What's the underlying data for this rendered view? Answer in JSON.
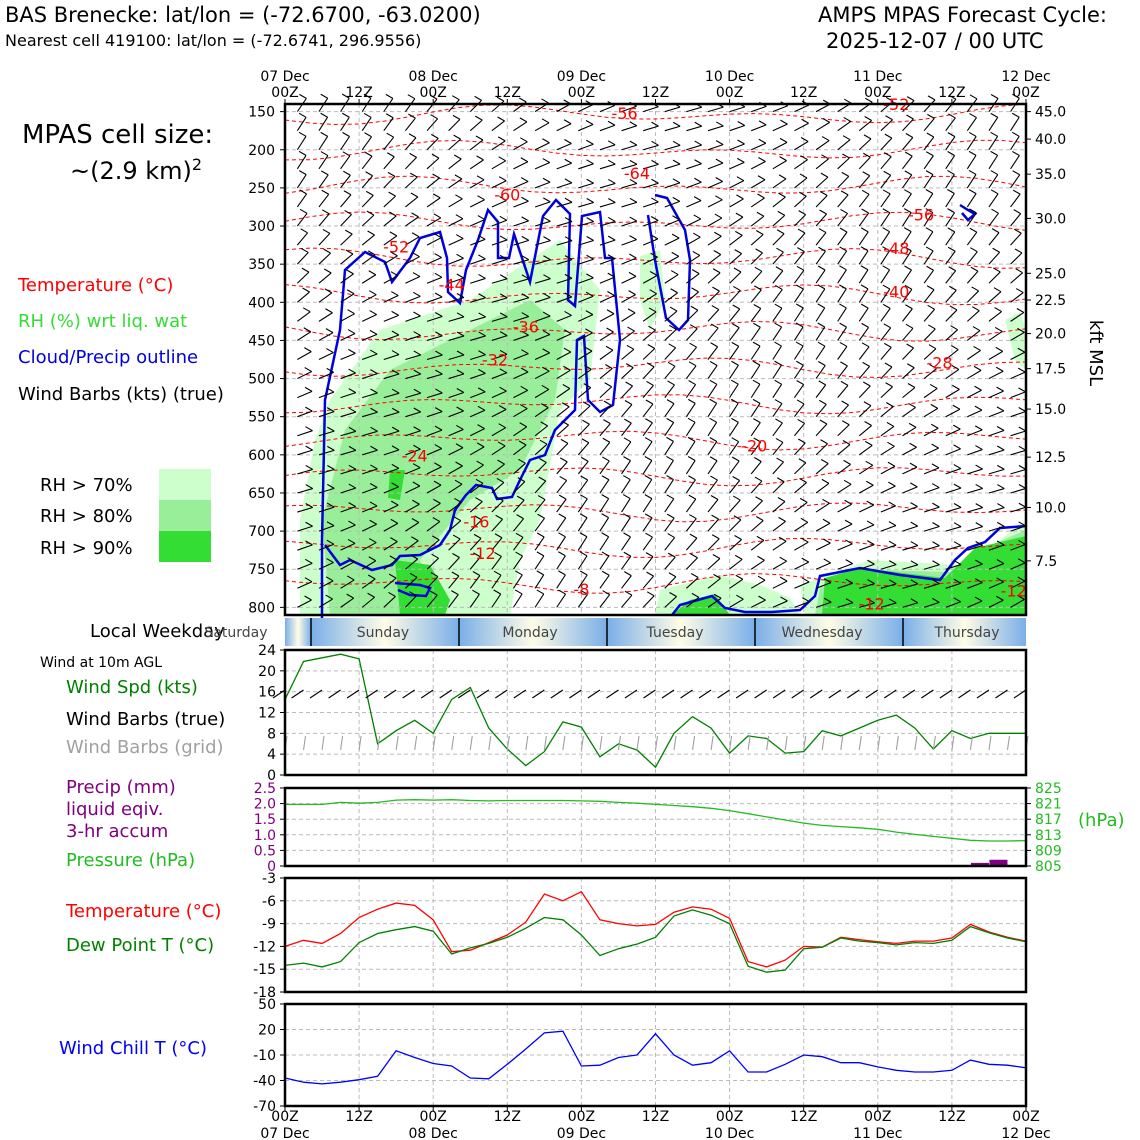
{
  "header": {
    "station_line": "BAS Brenecke: lat/lon = (-72.6700, -63.0200)",
    "cell_line": "Nearest cell 419100: lat/lon = (-72.6741, 296.9556)",
    "cycle_title": "AMPS MPAS Forecast Cycle:",
    "cycle_time": "2025-12-07 / 00 UTC"
  },
  "cell_size": {
    "label": "MPAS cell size:",
    "value": "~(2.9 km)",
    "exponent": "2"
  },
  "colors": {
    "temp": "#ff0000",
    "rh_label": "#33dd33",
    "cloud": "#0000dd",
    "green": "#008000",
    "pressure": "#22bb22",
    "precip": "#800080",
    "windchill": "#0000ff",
    "grid_barbs": "#a0a0a0",
    "rh70": "#ccffcc",
    "rh80": "#99ee99",
    "rh90": "#33dd33"
  },
  "chart_data": [
    {
      "id": "upper_air",
      "type": "heatmap",
      "title": "",
      "legend": [
        {
          "label": "Temperature (°C)",
          "color": "#ff0000"
        },
        {
          "label": "RH (%) wrt liq. wat",
          "color": "#33dd33"
        },
        {
          "label": "Cloud/Precip outline",
          "color": "#0000dd"
        },
        {
          "label": "Wind Barbs (kts) (true)",
          "color": "#000000"
        }
      ],
      "rh_legend": [
        "RH > 70%",
        "RH > 80%",
        "RH > 90%"
      ],
      "x_ticks_top": [
        {
          "h": 0,
          "top": "07 Dec",
          "bottom": "00Z"
        },
        {
          "h": 12,
          "top": "",
          "bottom": "12Z"
        },
        {
          "h": 24,
          "top": "08 Dec",
          "bottom": "00Z"
        },
        {
          "h": 36,
          "top": "",
          "bottom": "12Z"
        },
        {
          "h": 48,
          "top": "09 Dec",
          "bottom": "00Z"
        },
        {
          "h": 60,
          "top": "",
          "bottom": "12Z"
        },
        {
          "h": 72,
          "top": "10 Dec",
          "bottom": "00Z"
        },
        {
          "h": 84,
          "top": "",
          "bottom": "12Z"
        },
        {
          "h": 96,
          "top": "11 Dec",
          "bottom": "00Z"
        },
        {
          "h": 108,
          "top": "",
          "bottom": "12Z"
        },
        {
          "h": 120,
          "top": "12 Dec",
          "bottom": "00Z"
        }
      ],
      "y_left_hpa": [
        150,
        200,
        250,
        300,
        350,
        400,
        450,
        500,
        550,
        600,
        650,
        700,
        750,
        800
      ],
      "y_right_kft": [
        {
          "p": 150,
          "label": "45.0"
        },
        {
          "p": 186,
          "label": "40.0"
        },
        {
          "p": 232,
          "label": "35.0"
        },
        {
          "p": 290,
          "label": "30.0"
        },
        {
          "p": 362,
          "label": "25.0"
        },
        {
          "p": 397,
          "label": "22.5"
        },
        {
          "p": 441,
          "label": "20.0"
        },
        {
          "p": 487,
          "label": "17.5"
        },
        {
          "p": 540,
          "label": "15.0"
        },
        {
          "p": 603,
          "label": "12.5"
        },
        {
          "p": 669,
          "label": "10.0"
        },
        {
          "p": 739,
          "label": "7.5"
        }
      ],
      "ylabel_right": "kft MSL",
      "temp_contour_labels": [
        {
          "t": 55,
          "p": 153,
          "v": "-56"
        },
        {
          "t": 99,
          "p": 141,
          "v": "-52"
        },
        {
          "t": 57,
          "p": 232,
          "v": "-64"
        },
        {
          "t": 36,
          "p": 260,
          "v": "-60"
        },
        {
          "t": 103,
          "p": 286,
          "v": "-56"
        },
        {
          "t": 18,
          "p": 328,
          "v": "-52"
        },
        {
          "t": 99,
          "p": 330,
          "v": "-48"
        },
        {
          "t": 27,
          "p": 378,
          "v": "-44"
        },
        {
          "t": 99,
          "p": 387,
          "v": "-40"
        },
        {
          "t": 39,
          "p": 433,
          "v": "-36"
        },
        {
          "t": 34,
          "p": 476,
          "v": "-32"
        },
        {
          "t": 106,
          "p": 480,
          "v": "-28"
        },
        {
          "t": 76,
          "p": 589,
          "v": "-20"
        },
        {
          "t": 21,
          "p": 602,
          "v": "-24"
        },
        {
          "t": 31,
          "p": 689,
          "v": "-16"
        },
        {
          "t": 32,
          "p": 730,
          "v": "-12"
        },
        {
          "t": 48,
          "p": 777,
          "v": "-8"
        },
        {
          "t": 95,
          "p": 796,
          "v": "-12"
        },
        {
          "t": 118,
          "p": 779,
          "v": "-12"
        }
      ]
    },
    {
      "id": "weekday",
      "type": "table",
      "label": "Local Weekday",
      "days": [
        "Saturday",
        "Sunday",
        "Monday",
        "Tuesday",
        "Wednesday",
        "Thursday"
      ]
    },
    {
      "id": "wind10m",
      "type": "line",
      "header": "Wind at 10m AGL",
      "labels": [
        "Wind Spd (kts)",
        "Wind Barbs (true)",
        "Wind Barbs (grid)"
      ],
      "ylim": [
        0,
        24
      ],
      "yticks": [
        0,
        4,
        8,
        12,
        16,
        20,
        24
      ],
      "x": [
        0,
        3,
        6,
        9,
        12,
        15,
        18,
        21,
        24,
        27,
        30,
        33,
        36,
        39,
        42,
        45,
        48,
        51,
        54,
        57,
        60,
        63,
        66,
        69,
        72,
        75,
        78,
        81,
        84,
        87,
        90,
        93,
        96,
        99,
        102,
        105,
        108,
        111,
        114,
        117,
        120
      ],
      "values": [
        14.5,
        21.8,
        22.5,
        23.2,
        22.3,
        6,
        8.5,
        10.5,
        8,
        14.5,
        16.8,
        9,
        5,
        1.8,
        4.5,
        10.2,
        9.2,
        3.5,
        6,
        4.8,
        1.5,
        8,
        11.2,
        9,
        4.2,
        7.5,
        7,
        4.2,
        4.5,
        8.5,
        7.5,
        9,
        10.5,
        11.5,
        9,
        5,
        8.5,
        7,
        8,
        8,
        8
      ]
    },
    {
      "id": "precip_pressure",
      "type": "line",
      "labels": [
        "Precip (mm)",
        "liquid eqiv.",
        "3-hr accum",
        "Pressure (hPa)"
      ],
      "ylim_left": [
        0,
        2.5
      ],
      "yticks_left": [
        "0",
        "0.5",
        "1.0",
        "1.5",
        "2.0",
        "2.5"
      ],
      "ylim_right": [
        805,
        825
      ],
      "yticks_right": [
        805,
        809,
        813,
        817,
        821,
        825
      ],
      "ylabel_right": "(hPa)",
      "x": [
        0,
        3,
        6,
        9,
        12,
        15,
        18,
        21,
        24,
        27,
        30,
        33,
        36,
        39,
        42,
        45,
        48,
        51,
        54,
        57,
        60,
        63,
        66,
        69,
        72,
        75,
        78,
        81,
        84,
        87,
        90,
        93,
        96,
        99,
        102,
        105,
        108,
        111,
        114,
        117,
        120
      ],
      "pressure": [
        820.8,
        820.8,
        820.8,
        821.3,
        821.1,
        821.3,
        821.9,
        822,
        821.9,
        822,
        821.8,
        821.7,
        821.8,
        821.8,
        821.8,
        821.8,
        821.7,
        821.6,
        821.3,
        821.1,
        820.8,
        820.5,
        820.2,
        819.8,
        819.2,
        818.4,
        817.6,
        816.8,
        816,
        815.4,
        815.1,
        814.8,
        814.4,
        813.7,
        813.1,
        812.6,
        812.1,
        811.6,
        811.4,
        811.4,
        811.5
      ],
      "precip_bars": [
        {
          "x": 114,
          "value": 0.1
        },
        {
          "x": 117,
          "value": 0.2
        }
      ]
    },
    {
      "id": "temperature",
      "type": "line",
      "labels": [
        "Temperature (°C)",
        "Dew Point T (°C)"
      ],
      "ylim": [
        -18,
        -3
      ],
      "yticks": [
        -18,
        -15,
        -12,
        -9,
        -6,
        -3
      ],
      "x": [
        0,
        3,
        6,
        9,
        12,
        15,
        18,
        21,
        24,
        27,
        30,
        33,
        36,
        39,
        42,
        45,
        48,
        51,
        54,
        57,
        60,
        63,
        66,
        69,
        72,
        75,
        78,
        81,
        84,
        87,
        90,
        93,
        96,
        99,
        102,
        105,
        108,
        111,
        114,
        117,
        120
      ],
      "series": [
        {
          "name": "Temperature (°C)",
          "color": "#ff0000",
          "values": [
            -12,
            -11.2,
            -11.6,
            -10.3,
            -8.2,
            -7.1,
            -6.3,
            -6.6,
            -8.5,
            -12.7,
            -12.5,
            -11.5,
            -10.5,
            -8.8,
            -5.1,
            -6,
            -4.8,
            -8.5,
            -9,
            -9.3,
            -9.1,
            -7.5,
            -6.8,
            -7.1,
            -8.3,
            -14,
            -14.7,
            -13.8,
            -12,
            -12.1,
            -10.8,
            -11.1,
            -11.4,
            -11.6,
            -11.3,
            -11.3,
            -10.9,
            -9.1,
            -10.1,
            -10.8,
            -11.3
          ]
        },
        {
          "name": "Dew Point T (°C)",
          "color": "#008000",
          "values": [
            -14.5,
            -14.2,
            -14.7,
            -14,
            -11.5,
            -10.3,
            -9.8,
            -9.4,
            -10,
            -13,
            -12.2,
            -11.6,
            -10.8,
            -9.6,
            -8.2,
            -8.5,
            -10.5,
            -13.2,
            -12.3,
            -11.7,
            -10.8,
            -8,
            -7.2,
            -7.9,
            -9,
            -14.6,
            -15.4,
            -15.1,
            -12.3,
            -12.1,
            -10.9,
            -11.3,
            -11.5,
            -11.8,
            -11.5,
            -11.6,
            -11.2,
            -9.4,
            -10.2,
            -10.9,
            -11.4
          ]
        }
      ]
    },
    {
      "id": "windchill",
      "type": "line",
      "labels": [
        "Wind Chill T (°C)"
      ],
      "ylim": [
        -70,
        50
      ],
      "yticks": [
        -70,
        -40,
        -10,
        20,
        50
      ],
      "x": [
        0,
        3,
        6,
        9,
        12,
        15,
        18,
        21,
        24,
        27,
        30,
        33,
        36,
        39,
        42,
        45,
        48,
        51,
        54,
        57,
        60,
        63,
        66,
        69,
        72,
        75,
        78,
        81,
        84,
        87,
        90,
        93,
        96,
        99,
        102,
        105,
        108,
        111,
        114,
        117,
        120
      ],
      "values": [
        -37,
        -42,
        -44,
        -42,
        -39,
        -35,
        -5,
        -13,
        -20,
        -23,
        -37,
        -38,
        -21,
        -3,
        16,
        18,
        -23,
        -22,
        -13,
        -10,
        15,
        -10,
        -22,
        -19,
        -5,
        -30,
        -30,
        -21,
        -10,
        -12,
        -19,
        -19,
        -24,
        -28,
        -30,
        -30,
        -28,
        -16,
        -21,
        -22,
        -25
      ]
    }
  ],
  "bottom_axis": [
    {
      "top": "00Z",
      "bottom": "07 Dec"
    },
    {
      "top": "12Z",
      "bottom": ""
    },
    {
      "top": "00Z",
      "bottom": "08 Dec"
    },
    {
      "top": "12Z",
      "bottom": ""
    },
    {
      "top": "00Z",
      "bottom": "09 Dec"
    },
    {
      "top": "12Z",
      "bottom": ""
    },
    {
      "top": "00Z",
      "bottom": "10 Dec"
    },
    {
      "top": "12Z",
      "bottom": ""
    },
    {
      "top": "00Z",
      "bottom": "11 Dec"
    },
    {
      "top": "12Z",
      "bottom": ""
    },
    {
      "top": "00Z",
      "bottom": "12 Dec"
    }
  ]
}
